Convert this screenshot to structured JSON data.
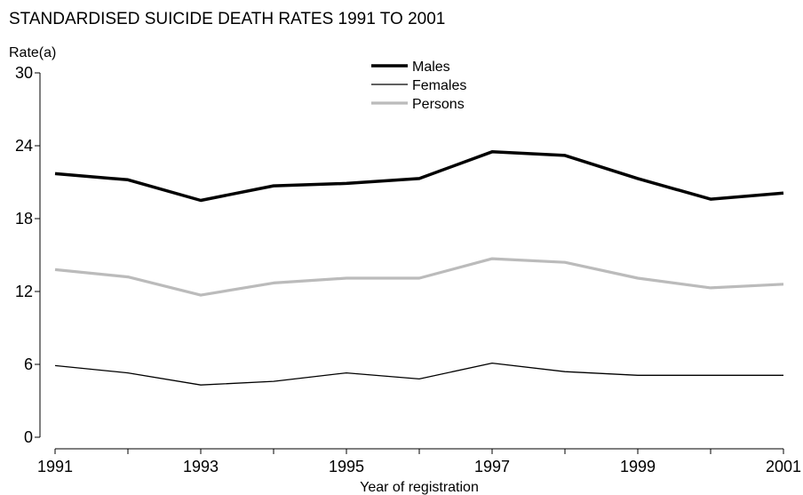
{
  "chart_data": {
    "type": "line",
    "title": "STANDARDISED SUICIDE DEATH RATES 1991 TO 2001",
    "ylabel": "Rate(a)",
    "xlabel": "Year of registration",
    "ylim": [
      0,
      30
    ],
    "yticks": [
      0,
      6,
      12,
      18,
      24,
      30
    ],
    "xlim": [
      1991,
      2001
    ],
    "xticks": [
      1991,
      1993,
      1995,
      1997,
      1999,
      2001
    ],
    "grid": false,
    "legend_position": "top-center",
    "x": [
      1991,
      1992,
      1993,
      1994,
      1995,
      1996,
      1997,
      1998,
      1999,
      2000,
      2001
    ],
    "series": [
      {
        "name": "Males",
        "color": "#000000",
        "values": [
          21.7,
          21.2,
          19.5,
          20.7,
          20.9,
          21.3,
          23.5,
          23.2,
          21.3,
          19.6,
          20.1
        ]
      },
      {
        "name": "Females",
        "color": "#000000",
        "values": [
          5.9,
          5.3,
          4.3,
          4.6,
          5.3,
          4.8,
          6.1,
          5.4,
          5.1,
          5.1,
          5.1
        ]
      },
      {
        "name": "Persons",
        "color": "#bbbbbb",
        "values": [
          13.8,
          13.2,
          11.7,
          12.7,
          13.1,
          13.1,
          14.7,
          14.4,
          13.1,
          12.3,
          12.6
        ]
      }
    ]
  }
}
